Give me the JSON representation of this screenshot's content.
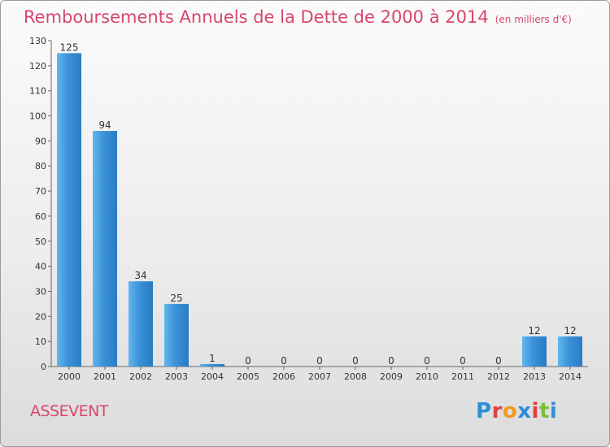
{
  "header": {
    "title": "Remboursements Annuels de la Dette de 2000 à 2014",
    "subtitle": "(en milliers d'€)"
  },
  "footer": {
    "commune": "ASSEVENT",
    "logo_text": "Proxiti",
    "logo_colors": [
      "#2a8fd6",
      "#e0423a",
      "#f29a1f",
      "#2a8fd6",
      "#e0423a",
      "#7cbf3a",
      "#2a8fd6"
    ]
  },
  "chart_data": {
    "type": "bar",
    "title": "Remboursements Annuels de la Dette de 2000 à 2014",
    "subtitle": "(en milliers d'€)",
    "categories": [
      "2000",
      "2001",
      "2002",
      "2003",
      "2004",
      "2005",
      "2006",
      "2007",
      "2008",
      "2009",
      "2010",
      "2011",
      "2012",
      "2013",
      "2014"
    ],
    "values": [
      125,
      94,
      34,
      25,
      1,
      0,
      0,
      0,
      0,
      0,
      0,
      0,
      0,
      12,
      12
    ],
    "data_labels": [
      "125",
      "94",
      "34",
      "25",
      "1",
      "0",
      "0",
      "0",
      "0",
      "0",
      "0",
      "0",
      "0",
      "12",
      "12"
    ],
    "yticks": [
      "0",
      "10",
      "20",
      "30",
      "40",
      "50",
      "60",
      "70",
      "80",
      "90",
      "100",
      "110",
      "120",
      "130"
    ],
    "ylim": [
      0,
      130
    ],
    "grid": false,
    "bar_color": "#3a92d8",
    "bar_color_light": "#63b6ee",
    "bar_color_dark": "#2a7cc2"
  }
}
